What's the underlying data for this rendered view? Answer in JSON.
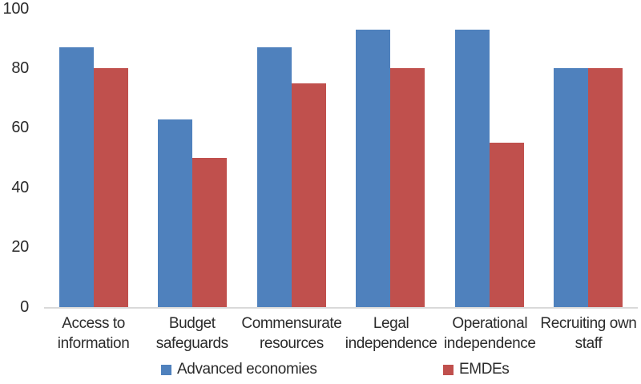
{
  "chart_data": {
    "type": "bar",
    "categories": [
      "Access to\ninformation",
      "Budget\nsafeguards",
      "Commensurate\nresources",
      "Legal\nindependence",
      "Operational\nindependence",
      "Recruiting own\nstaff"
    ],
    "series": [
      {
        "name": "Advanced economies",
        "color": "#4f81bd",
        "values": [
          87,
          63,
          87,
          93,
          93,
          80
        ]
      },
      {
        "name": "EMDEs",
        "color": "#c0504d",
        "values": [
          80,
          50,
          75,
          80,
          55,
          80
        ]
      }
    ],
    "title": "",
    "xlabel": "",
    "ylabel": "",
    "ylim": [
      0,
      100
    ],
    "yticks": [
      0,
      20,
      40,
      60,
      80,
      100
    ],
    "grid": false,
    "legend_position": "bottom",
    "axis_line_color": "#d9d9d9"
  }
}
